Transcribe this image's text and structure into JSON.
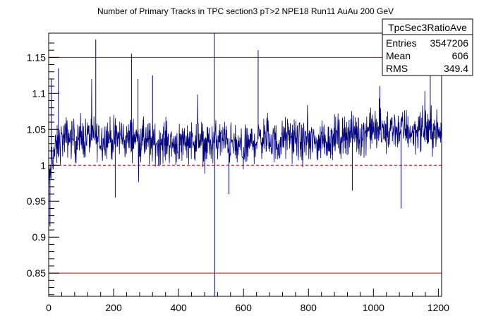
{
  "chart_data": {
    "type": "line",
    "title": "Number of Primary Tracks in TPC section3 pT>2 NPE18 Run11 AuAu 200 GeV",
    "xlabel": "",
    "ylabel": "",
    "xlim": [
      0,
      1210
    ],
    "ylim": [
      0.8178,
      1.1837
    ],
    "x_ticks": [
      0,
      200,
      400,
      600,
      800,
      1000,
      1200
    ],
    "y_ticks": [
      0.85,
      0.9,
      0.95,
      1.0,
      1.05,
      1.1,
      1.15
    ],
    "x_tick_labels": [
      "0",
      "200",
      "400",
      "600",
      "800",
      "1000",
      "1200"
    ],
    "y_tick_labels": [
      "0.85",
      "0.9",
      "0.95",
      "1",
      "1.05",
      "1.1",
      "1.15"
    ],
    "reference_lines": [
      {
        "y": 1.15,
        "style": "solid",
        "color": "#cc0000"
      },
      {
        "y": 1.0,
        "style": "dashed",
        "color": "#cc0000"
      },
      {
        "y": 0.85,
        "style": "solid",
        "color": "#cc0000"
      }
    ],
    "series": [
      {
        "color": "#000080",
        "x": [
          0,
          10,
          20,
          40,
          60,
          80,
          100,
          120,
          140,
          160,
          180,
          200,
          220,
          240,
          260,
          280,
          300,
          320,
          340,
          360,
          380,
          400,
          420,
          440,
          460,
          480,
          500,
          520,
          540,
          560,
          580,
          600,
          620,
          640,
          660,
          680,
          700,
          720,
          740,
          760,
          780,
          800,
          820,
          840,
          860,
          880,
          900,
          920,
          940,
          960,
          980,
          1000,
          1020,
          1040,
          1060,
          1080,
          1100,
          1120,
          1140,
          1160,
          1180,
          1200
        ],
        "values": [
          0.97,
          1.01,
          1.02,
          1.035,
          1.04,
          1.035,
          1.035,
          1.04,
          1.04,
          1.035,
          1.04,
          1.035,
          1.04,
          1.035,
          1.04,
          1.035,
          1.035,
          1.03,
          1.03,
          1.035,
          1.03,
          1.03,
          1.035,
          1.035,
          1.035,
          1.03,
          1.03,
          1.035,
          1.035,
          1.03,
          1.025,
          1.02,
          1.03,
          1.035,
          1.04,
          1.035,
          1.03,
          1.035,
          1.04,
          1.035,
          1.03,
          1.035,
          1.03,
          1.035,
          1.035,
          1.04,
          1.04,
          1.045,
          1.045,
          1.04,
          1.05,
          1.05,
          1.05,
          1.045,
          1.05,
          1.05,
          1.05,
          1.045,
          1.05,
          1.05,
          1.05,
          1.045
        ],
        "spikes": [
          {
            "x": 4,
            "y": 0.915
          },
          {
            "x": 8,
            "y": 1.12
          },
          {
            "x": 30,
            "y": 1.135
          },
          {
            "x": 145,
            "y": 1.175
          },
          {
            "x": 255,
            "y": 1.155
          },
          {
            "x": 320,
            "y": 1.125
          },
          {
            "x": 510,
            "y": 1.185
          },
          {
            "x": 511,
            "y": 0.815
          },
          {
            "x": 645,
            "y": 1.16
          },
          {
            "x": 1020,
            "y": 1.11
          },
          {
            "x": 1085,
            "y": 0.94
          },
          {
            "x": 1175,
            "y": 1.13
          },
          {
            "x": 205,
            "y": 0.955
          },
          {
            "x": 555,
            "y": 0.96
          },
          {
            "x": 935,
            "y": 0.965
          },
          {
            "x": 275,
            "y": 1.12
          }
        ]
      }
    ]
  },
  "stats_box": {
    "name": "TpcSec3RatioAve",
    "rows": [
      {
        "label": "Entries",
        "value": "3547206"
      },
      {
        "label": "Mean",
        "value": "606"
      },
      {
        "label": "RMS",
        "value": "349.4"
      }
    ]
  }
}
